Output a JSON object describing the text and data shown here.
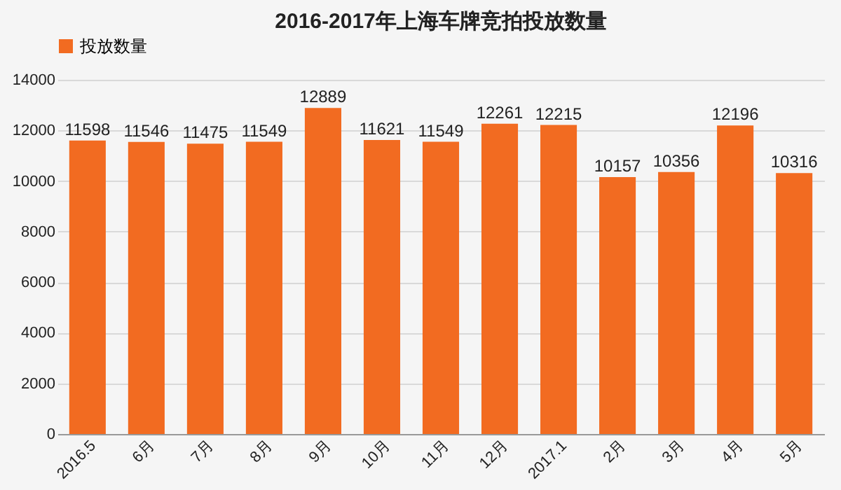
{
  "chart_data": {
    "type": "bar",
    "title": "2016-2017年上海车牌竞拍投放数量",
    "categories": [
      "2016.5",
      "6月",
      "7月",
      "8月",
      "9月",
      "10月",
      "11月",
      "12月",
      "2017.1",
      "2月",
      "3月",
      "4月",
      "5月"
    ],
    "series": [
      {
        "name": "投放数量",
        "color": "#f26b21",
        "values": [
          11598,
          11546,
          11475,
          11549,
          12889,
          11621,
          11549,
          12261,
          12215,
          10157,
          10356,
          12196,
          10316
        ]
      }
    ],
    "ylim": [
      0,
      14000
    ],
    "yticks": [
      0,
      2000,
      4000,
      6000,
      8000,
      10000,
      12000,
      14000
    ],
    "grid": "y",
    "legend": "top",
    "data_labels": true
  }
}
